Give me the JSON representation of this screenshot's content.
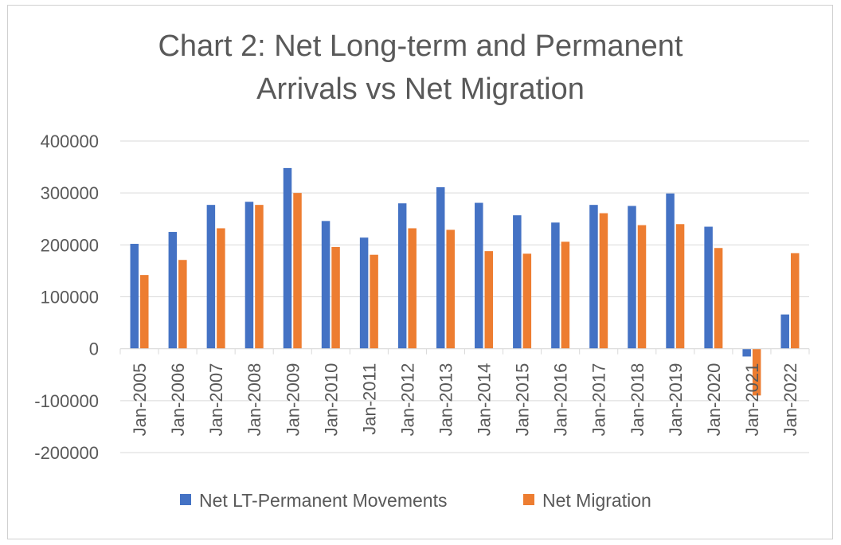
{
  "chart_data": {
    "type": "bar",
    "title": "Chart 2: Net Long-term and Permanent Arrivals vs Net Migration",
    "title_lines": [
      "Chart 2: Net Long-term and Permanent",
      "Arrivals vs Net Migration"
    ],
    "categories": [
      "Jan-2005",
      "Jan-2006",
      "Jan-2007",
      "Jan-2008",
      "Jan-2009",
      "Jan-2010",
      "Jan-2011",
      "Jan-2012",
      "Jan-2013",
      "Jan-2014",
      "Jan-2015",
      "Jan-2016",
      "Jan-2017",
      "Jan-2018",
      "Jan-2019",
      "Jan-2020",
      "Jan-2021",
      "Jan-2022"
    ],
    "series": [
      {
        "name": "Net LT-Permanent Movements",
        "color": "#4472C4",
        "values": [
          202000,
          225000,
          277000,
          283000,
          348000,
          246000,
          214000,
          280000,
          311000,
          281000,
          257000,
          243000,
          277000,
          275000,
          299000,
          235000,
          -15000,
          66000
        ]
      },
      {
        "name": "Net Migration",
        "color": "#ED7D31",
        "values": [
          142000,
          171000,
          232000,
          277000,
          300000,
          196000,
          181000,
          232000,
          229000,
          188000,
          183000,
          206000,
          261000,
          238000,
          240000,
          194000,
          -90000,
          184000
        ]
      }
    ],
    "yticks": [
      "400000",
      "300000",
      "200000",
      "100000",
      "0",
      "-100000",
      "-200000"
    ],
    "ylim": [
      -200000,
      400000
    ],
    "xlabel": "",
    "ylabel": "",
    "grid": true,
    "legend": "bottom"
  }
}
